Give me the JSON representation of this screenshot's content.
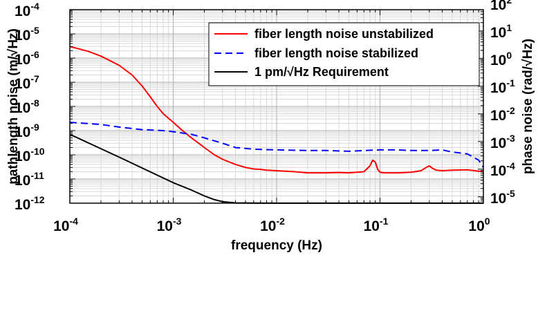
{
  "chart_data": {
    "type": "line",
    "x_scale": "log",
    "y_scale": "log",
    "xlim": [
      0.0001,
      1
    ],
    "ylim": [
      1e-12,
      0.0001
    ],
    "y2lim": [
      5.89e-06,
      58.9
    ],
    "grid": true,
    "legend_position": "top-right",
    "xlabel": "frequency (Hz)",
    "ylabel": "pathlength noise (m/√Hz)",
    "y2label": "phase noise (rad/√Hz)",
    "x_ticks": [
      {
        "base": "10",
        "exp": "-4",
        "value": 0.0001
      },
      {
        "base": "10",
        "exp": "-3",
        "value": 0.001
      },
      {
        "base": "10",
        "exp": "-2",
        "value": 0.01
      },
      {
        "base": "10",
        "exp": "-1",
        "value": 0.1
      },
      {
        "base": "10",
        "exp": "0",
        "value": 1
      }
    ],
    "y_ticks": [
      {
        "base": "10",
        "exp": "-4",
        "value": 0.0001
      },
      {
        "base": "10",
        "exp": "-5",
        "value": 1e-05
      },
      {
        "base": "10",
        "exp": "-6",
        "value": 1e-06
      },
      {
        "base": "10",
        "exp": "-7",
        "value": 1e-07
      },
      {
        "base": "10",
        "exp": "-8",
        "value": 1e-08
      },
      {
        "base": "10",
        "exp": "-9",
        "value": 1e-09
      },
      {
        "base": "10",
        "exp": "-10",
        "value": 1e-10
      },
      {
        "base": "10",
        "exp": "-11",
        "value": 1e-11
      },
      {
        "base": "10",
        "exp": "-12",
        "value": 1e-12
      }
    ],
    "y2_ticks": [
      {
        "base": "10",
        "exp": "2",
        "value": 100
      },
      {
        "base": "10",
        "exp": "1",
        "value": 10
      },
      {
        "base": "10",
        "exp": "0",
        "value": 1
      },
      {
        "base": "10",
        "exp": "-1",
        "value": 0.1
      },
      {
        "base": "10",
        "exp": "-2",
        "value": 0.01
      },
      {
        "base": "10",
        "exp": "-3",
        "value": 0.001
      },
      {
        "base": "10",
        "exp": "-4",
        "value": 0.0001
      },
      {
        "base": "10",
        "exp": "-5",
        "value": 1e-05
      }
    ],
    "series": [
      {
        "name": "fiber length noise unstabilized",
        "color": "#ff0000",
        "dash": "solid",
        "x": [
          0.0001,
          0.00015,
          0.0002,
          0.0003,
          0.0004,
          0.0005,
          0.0006,
          0.0007,
          0.0008,
          0.001,
          0.0012,
          0.0015,
          0.0018,
          0.002,
          0.0025,
          0.003,
          0.004,
          0.005,
          0.006,
          0.007,
          0.008,
          0.01,
          0.015,
          0.02,
          0.03,
          0.04,
          0.05,
          0.06,
          0.07,
          0.08,
          0.085,
          0.09,
          0.095,
          0.1,
          0.11,
          0.15,
          0.2,
          0.25,
          0.28,
          0.3,
          0.32,
          0.35,
          0.4,
          0.5,
          0.7,
          1.0
        ],
        "y": [
          3e-06,
          1.9e-06,
          1.2e-06,
          5e-07,
          2e-07,
          7e-08,
          2.5e-08,
          1e-08,
          5e-09,
          2.2e-09,
          1.1e-09,
          5e-10,
          2.8e-10,
          2e-10,
          1e-10,
          6.5e-11,
          4e-11,
          3e-11,
          2.6e-11,
          2.5e-11,
          2.3e-11,
          2.2e-11,
          2e-11,
          1.8e-11,
          1.8e-11,
          1.85e-11,
          1.8e-11,
          1.9e-11,
          2e-11,
          3.5e-11,
          6e-11,
          5e-11,
          2.5e-11,
          1.9e-11,
          1.8e-11,
          1.8e-11,
          1.9e-11,
          2.2e-11,
          3e-11,
          3.5e-11,
          2.8e-11,
          2.3e-11,
          2.2e-11,
          2.3e-11,
          2.4e-11,
          2e-11
        ]
      },
      {
        "name": "fiber length noise stabilized",
        "color": "#0000ff",
        "dash": "dashed",
        "x": [
          0.0001,
          0.0002,
          0.0003,
          0.0005,
          0.0008,
          0.001,
          0.0015,
          0.002,
          0.003,
          0.004,
          0.006,
          0.01,
          0.02,
          0.03,
          0.05,
          0.07,
          0.1,
          0.15,
          0.2,
          0.3,
          0.4,
          0.5,
          0.7,
          0.9,
          1.0
        ],
        "y": [
          2.2e-09,
          1.8e-09,
          1.4e-09,
          1.1e-09,
          1e-09,
          9e-10,
          7e-10,
          5e-10,
          3e-10,
          2e-10,
          1.7e-10,
          1.6e-10,
          1.5e-10,
          1.5e-10,
          1.4e-10,
          1.5e-10,
          1.6e-10,
          1.6e-10,
          1.5e-10,
          1.5e-10,
          1.6e-10,
          1.3e-10,
          1.1e-10,
          6e-11,
          3e-11
        ]
      },
      {
        "name": "1 pm/√Hz Requirement",
        "color": "#000000",
        "dash": "solid",
        "x": [
          0.0001,
          0.0003,
          0.001,
          0.0015,
          0.002,
          0.0025,
          0.003,
          0.004,
          0.005,
          0.007,
          0.01,
          0.1,
          1.0
        ],
        "y": [
          7e-10,
          8e-11,
          7e-12,
          3.5e-12,
          2e-12,
          1.4e-12,
          1.15e-12,
          1.03e-12,
          1.01e-12,
          1e-12,
          1e-12,
          1e-12,
          1e-12
        ]
      }
    ]
  }
}
